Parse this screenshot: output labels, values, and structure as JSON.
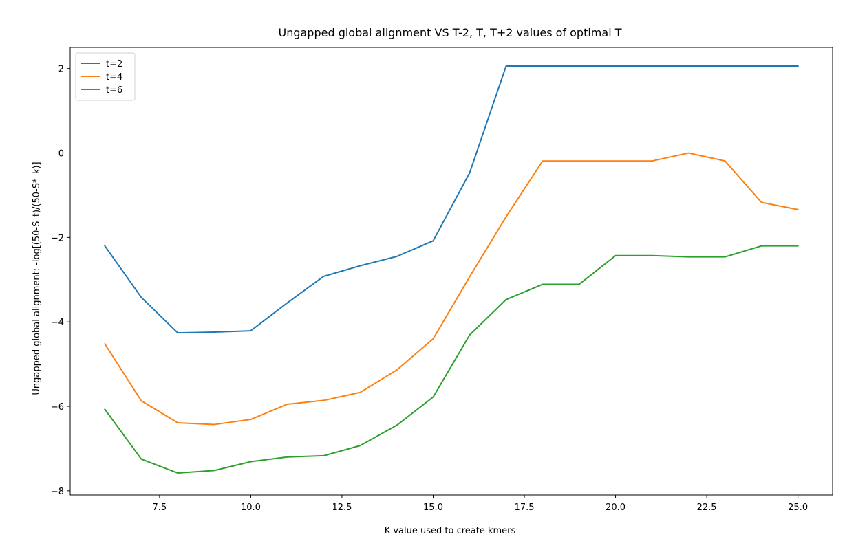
{
  "chart_data": {
    "type": "line",
    "title": "Ungapped global alignment VS T-2, T, T+2 values of optimal T",
    "xlabel": "K value used to create kmers",
    "ylabel": "Ungapped global alignment: -log[(50-S_t)/(50-S*_k)]",
    "xlim": [
      5.05,
      25.95
    ],
    "ylim": [
      -8.1,
      2.5
    ],
    "xticks": [
      7.5,
      10.0,
      12.5,
      15.0,
      17.5,
      20.0,
      22.5,
      25.0
    ],
    "xtick_labels": [
      "7.5",
      "10.0",
      "12.5",
      "15.0",
      "17.5",
      "20.0",
      "22.5",
      "25.0"
    ],
    "yticks": [
      -8,
      -6,
      -4,
      -2,
      0,
      2
    ],
    "ytick_labels": [
      "−8",
      "−6",
      "−4",
      "−2",
      "0",
      "2"
    ],
    "grid": false,
    "legend_position": "top-left",
    "x": [
      6,
      7,
      8,
      9,
      10,
      11,
      12,
      13,
      14,
      15,
      16,
      17,
      18,
      19,
      20,
      21,
      22,
      23,
      24,
      25
    ],
    "series": [
      {
        "name": "t=2",
        "color": "#1f77b4",
        "values": [
          -2.2,
          -3.42,
          -4.26,
          -4.24,
          -4.21,
          -3.55,
          -2.92,
          -2.67,
          -2.45,
          -2.08,
          -0.47,
          2.06,
          2.06,
          2.06,
          2.06,
          2.06,
          2.06,
          2.06,
          2.06,
          2.06
        ]
      },
      {
        "name": "t=4",
        "color": "#ff7f0e",
        "values": [
          -4.52,
          -5.87,
          -6.39,
          -6.43,
          -6.31,
          -5.95,
          -5.86,
          -5.67,
          -5.14,
          -4.4,
          -2.93,
          -1.51,
          -0.19,
          -0.19,
          -0.19,
          -0.19,
          0.0,
          -0.19,
          -1.17,
          -1.34
        ]
      },
      {
        "name": "t=6",
        "color": "#2ca02c",
        "values": [
          -6.07,
          -7.25,
          -7.58,
          -7.52,
          -7.31,
          -7.2,
          -7.17,
          -6.93,
          -6.45,
          -5.78,
          -4.31,
          -3.47,
          -3.11,
          -3.11,
          -2.43,
          -2.43,
          -2.46,
          -2.46,
          -2.2,
          -2.2
        ]
      }
    ]
  }
}
